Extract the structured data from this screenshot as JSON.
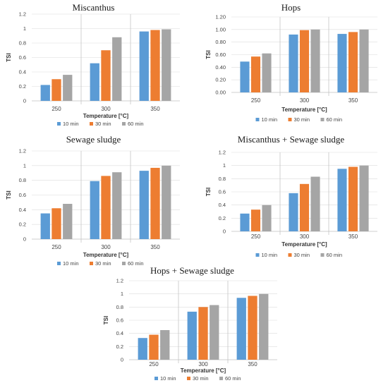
{
  "colors": {
    "series": [
      "#5b9bd5",
      "#ed7d31",
      "#a5a5a5"
    ],
    "grid": "#dcdcdc",
    "vline": "#bfbfbf",
    "axis": "#bfbfbf"
  },
  "chart_data": [
    {
      "type": "bar",
      "title": "Miscanthus",
      "xlabel": "Temperature [°C]",
      "ylabel": "TSI",
      "categories": [
        "250",
        "300",
        "350"
      ],
      "ylim": [
        0,
        1.2
      ],
      "yticks": [
        "0",
        "0.2",
        "0.4",
        "0.6",
        "0.8",
        "1",
        "1.2"
      ],
      "grid": true,
      "legend": "bottom",
      "series": [
        {
          "name": "10 min",
          "values": [
            0.22,
            0.52,
            0.96
          ]
        },
        {
          "name": "30 min",
          "values": [
            0.3,
            0.7,
            0.98
          ]
        },
        {
          "name": "60 min",
          "values": [
            0.36,
            0.88,
            0.99
          ]
        }
      ]
    },
    {
      "type": "bar",
      "title": "Hops",
      "xlabel": "Temperature [°C]",
      "ylabel": "TSI",
      "categories": [
        "250",
        "300",
        "350"
      ],
      "ylim": [
        0,
        1.2
      ],
      "yticks": [
        "0.00",
        "0.20",
        "0.40",
        "0.60",
        "0.80",
        "1.00",
        "1.20"
      ],
      "grid": true,
      "legend": "bottom",
      "series": [
        {
          "name": "10 min",
          "values": [
            0.49,
            0.92,
            0.93
          ]
        },
        {
          "name": "30 min",
          "values": [
            0.57,
            0.99,
            0.96
          ]
        },
        {
          "name": "60 min",
          "values": [
            0.62,
            1.0,
            1.0
          ]
        }
      ]
    },
    {
      "type": "bar",
      "title": "Sewage sludge",
      "xlabel": "Temperature [°C]",
      "ylabel": "TSI",
      "categories": [
        "250",
        "300",
        "350"
      ],
      "ylim": [
        0,
        1.2
      ],
      "yticks": [
        "0",
        "0.2",
        "0.4",
        "0.6",
        "0.8",
        "1",
        "1.2"
      ],
      "grid": true,
      "legend": "bottom",
      "series": [
        {
          "name": "10 min",
          "values": [
            0.35,
            0.79,
            0.93
          ]
        },
        {
          "name": "30 min",
          "values": [
            0.42,
            0.86,
            0.97
          ]
        },
        {
          "name": "60 min",
          "values": [
            0.48,
            0.91,
            1.0
          ]
        }
      ]
    },
    {
      "type": "bar",
      "title": "Miscanthus + Sewage sludge",
      "xlabel": "Temperature [°C]",
      "ylabel": "TSI",
      "categories": [
        "250",
        "300",
        "350"
      ],
      "ylim": [
        0,
        1.2
      ],
      "yticks": [
        "0",
        "0.2",
        "0.4",
        "0.6",
        "0.8",
        "1",
        "1.2"
      ],
      "grid": true,
      "legend": "bottom",
      "series": [
        {
          "name": "10 min",
          "values": [
            0.27,
            0.58,
            0.95
          ]
        },
        {
          "name": "30 min",
          "values": [
            0.33,
            0.72,
            0.98
          ]
        },
        {
          "name": "60 min",
          "values": [
            0.4,
            0.83,
            1.0
          ]
        }
      ]
    },
    {
      "type": "bar",
      "title": "Hops + Sewage sludge",
      "xlabel": "Temperature [°C]",
      "ylabel": "TSI",
      "categories": [
        "250",
        "300",
        "350"
      ],
      "ylim": [
        0,
        1.2
      ],
      "yticks": [
        "0",
        "0.2",
        "0.4",
        "0.6",
        "0.8",
        "1",
        "1.2"
      ],
      "grid": true,
      "legend": "bottom",
      "series": [
        {
          "name": "10 min",
          "values": [
            0.33,
            0.73,
            0.94
          ]
        },
        {
          "name": "30 min",
          "values": [
            0.38,
            0.8,
            0.97
          ]
        },
        {
          "name": "60 min",
          "values": [
            0.45,
            0.83,
            1.0
          ]
        }
      ]
    }
  ]
}
